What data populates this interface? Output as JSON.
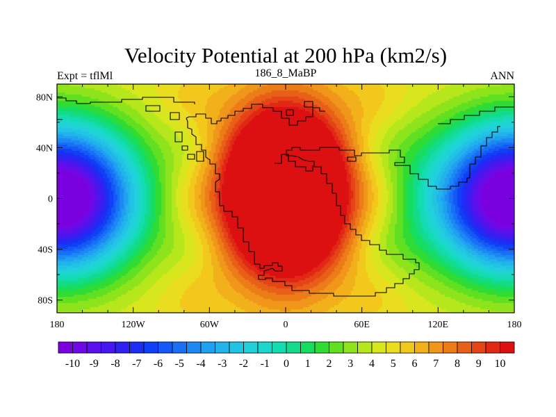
{
  "chart_data": {
    "type": "heatmap",
    "title": "Velocity Potential at 200 hPa (km2/s)",
    "left_label": "Expt = tflMl",
    "center_label": "186_8_MaBP",
    "right_label": "ANN",
    "x_range": [
      -180,
      180
    ],
    "y_range": [
      -90,
      90
    ],
    "x_ticks": [
      {
        "value": -180,
        "label": "180"
      },
      {
        "value": -120,
        "label": "120W"
      },
      {
        "value": -60,
        "label": "60W"
      },
      {
        "value": 0,
        "label": "0"
      },
      {
        "value": 60,
        "label": "60E"
      },
      {
        "value": 120,
        "label": "120E"
      },
      {
        "value": 180,
        "label": "180"
      }
    ],
    "y_ticks": [
      {
        "value": 80,
        "label": "80N"
      },
      {
        "value": 40,
        "label": "40N"
      },
      {
        "value": 0,
        "label": "0"
      },
      {
        "value": -40,
        "label": "40S"
      },
      {
        "value": -80,
        "label": "80S"
      }
    ],
    "field": {
      "description": "contoured velocity potential",
      "maximum": {
        "lon": 0,
        "lat": 5,
        "value": 10
      },
      "minimum_west": {
        "lon": -175,
        "lat": 0,
        "value": -10
      },
      "minimum_east": {
        "lon": 178,
        "lat": 0,
        "value": -10
      }
    },
    "colorbar": {
      "min": -10,
      "max": 10,
      "step": 0.5,
      "tick_labels": [
        "-10",
        "-9",
        "-8",
        "-7",
        "-6",
        "-5",
        "-4",
        "-3",
        "-2",
        "-1",
        "0",
        "1",
        "2",
        "3",
        "4",
        "5",
        "6",
        "7",
        "8",
        "9",
        "10"
      ],
      "colors": [
        "#7a00e0",
        "#6f08e6",
        "#5a10ea",
        "#4418ee",
        "#2e22f2",
        "#1c2ef4",
        "#1040f5",
        "#1458f6",
        "#1870f6",
        "#1c88f4",
        "#20a0f0",
        "#20b4ea",
        "#22c4e4",
        "#22d0dc",
        "#1cd8cc",
        "#14dcb0",
        "#12dc8c",
        "#16dc60",
        "#30dc34",
        "#60e020",
        "#8ee41c",
        "#b6e61c",
        "#d8e61e",
        "#eadc1e",
        "#f2c81c",
        "#f2b01a",
        "#f0961a",
        "#ec7c18",
        "#e86018",
        "#e44416",
        "#e02814",
        "#dc1010"
      ]
    }
  }
}
